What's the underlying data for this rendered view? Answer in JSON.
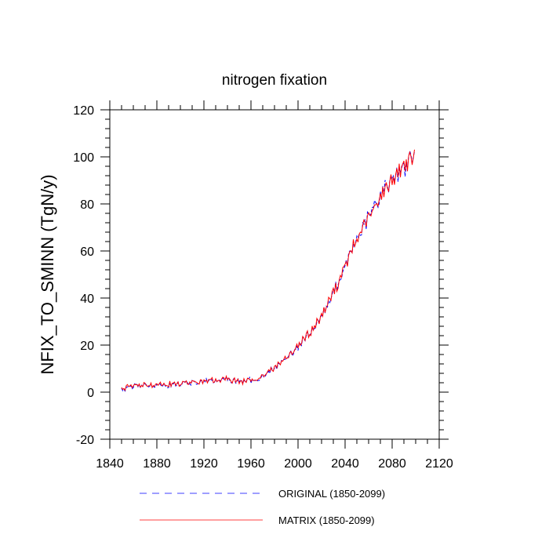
{
  "chart_data": {
    "type": "line",
    "title": "nitrogen fixation",
    "xlabel": "",
    "ylabel": "NFIX_TO_SMINN  (TgN/y)",
    "xlim": [
      1840,
      2120
    ],
    "ylim": [
      -20,
      120
    ],
    "xticks": [
      1840,
      1880,
      1920,
      1960,
      2000,
      2040,
      2080,
      2120
    ],
    "yticks": [
      -20,
      0,
      20,
      40,
      60,
      80,
      100,
      120
    ],
    "grid": false,
    "legend_position": "bottom",
    "series": [
      {
        "name": "ORIGINAL (1850-2099)",
        "color": "#0000ff",
        "dash": "dashed",
        "start_year": 1850,
        "end_year": 2099,
        "control_points": [
          [
            1850,
            1.0
          ],
          [
            1860,
            2.5
          ],
          [
            1880,
            3.0
          ],
          [
            1900,
            3.5
          ],
          [
            1920,
            4.5
          ],
          [
            1940,
            5.5
          ],
          [
            1955,
            4.5
          ],
          [
            1965,
            5.5
          ],
          [
            1980,
            10
          ],
          [
            1995,
            17
          ],
          [
            2010,
            25
          ],
          [
            2020,
            32
          ],
          [
            2030,
            42
          ],
          [
            2040,
            53
          ],
          [
            2050,
            65
          ],
          [
            2060,
            74
          ],
          [
            2070,
            83
          ],
          [
            2080,
            91
          ],
          [
            2090,
            96
          ],
          [
            2099,
            100
          ]
        ]
      },
      {
        "name": "MATRIX (1850-2099)",
        "color": "#ff0000",
        "dash": "solid",
        "start_year": 1850,
        "end_year": 2099,
        "control_points": [
          [
            1850,
            1.5
          ],
          [
            1860,
            2.7
          ],
          [
            1880,
            3.2
          ],
          [
            1900,
            3.6
          ],
          [
            1920,
            4.6
          ],
          [
            1940,
            5.4
          ],
          [
            1955,
            4.4
          ],
          [
            1965,
            5.6
          ],
          [
            1980,
            10.2
          ],
          [
            1995,
            17.2
          ],
          [
            2010,
            25.2
          ],
          [
            2020,
            32.3
          ],
          [
            2030,
            42.3
          ],
          [
            2040,
            53.2
          ],
          [
            2050,
            65.2
          ],
          [
            2060,
            74.2
          ],
          [
            2070,
            83.3
          ],
          [
            2080,
            91.2
          ],
          [
            2090,
            96.3
          ],
          [
            2099,
            100.3
          ]
        ]
      }
    ]
  }
}
